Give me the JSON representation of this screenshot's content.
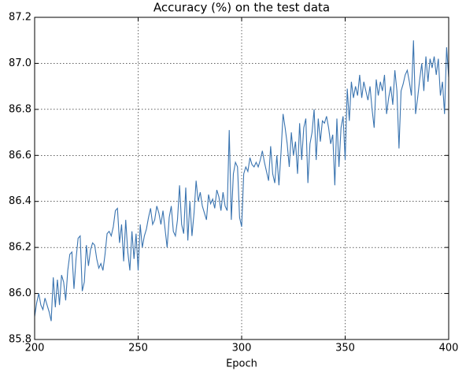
{
  "chart_data": {
    "type": "line",
    "title": "Accuracy (%) on the test data",
    "xlabel": "Epoch",
    "x": [
      200,
      201,
      202,
      203,
      204,
      205,
      206,
      207,
      208,
      209,
      210,
      211,
      212,
      213,
      214,
      215,
      216,
      217,
      218,
      219,
      220,
      221,
      222,
      223,
      224,
      225,
      226,
      227,
      228,
      229,
      230,
      231,
      232,
      233,
      234,
      235,
      236,
      237,
      238,
      239,
      240,
      241,
      242,
      243,
      244,
      245,
      246,
      247,
      248,
      249,
      250,
      251,
      252,
      253,
      254,
      255,
      256,
      257,
      258,
      259,
      260,
      261,
      262,
      263,
      264,
      265,
      266,
      267,
      268,
      269,
      270,
      271,
      272,
      273,
      274,
      275,
      276,
      277,
      278,
      279,
      280,
      281,
      282,
      283,
      284,
      285,
      286,
      287,
      288,
      289,
      290,
      291,
      292,
      293,
      294,
      295,
      296,
      297,
      298,
      299,
      300,
      301,
      302,
      303,
      304,
      305,
      306,
      307,
      308,
      309,
      310,
      311,
      312,
      313,
      314,
      315,
      316,
      317,
      318,
      319,
      320,
      321,
      322,
      323,
      324,
      325,
      326,
      327,
      328,
      329,
      330,
      331,
      332,
      333,
      334,
      335,
      336,
      337,
      338,
      339,
      340,
      341,
      342,
      343,
      344,
      345,
      346,
      347,
      348,
      349,
      350,
      351,
      352,
      353,
      354,
      355,
      356,
      357,
      358,
      359,
      360,
      361,
      362,
      363,
      364,
      365,
      366,
      367,
      368,
      369,
      370,
      371,
      372,
      373,
      374,
      375,
      376,
      377,
      378,
      379,
      380,
      381,
      382,
      383,
      384,
      385,
      386,
      387,
      388,
      389,
      390,
      391,
      392,
      393,
      394,
      395,
      396,
      397,
      398,
      399,
      400
    ],
    "series": [
      {
        "name": "accuracy",
        "color": "#3a74b0",
        "values": [
          85.9,
          85.96,
          86.0,
          85.95,
          85.93,
          85.98,
          85.95,
          85.92,
          85.88,
          86.07,
          85.94,
          86.06,
          85.95,
          86.08,
          86.05,
          85.97,
          86.1,
          86.17,
          86.18,
          86.02,
          86.15,
          86.24,
          86.25,
          86.01,
          86.05,
          86.21,
          86.12,
          86.19,
          86.22,
          86.21,
          86.15,
          86.11,
          86.13,
          86.1,
          86.17,
          86.26,
          86.27,
          86.25,
          86.29,
          86.36,
          86.37,
          86.22,
          86.3,
          86.14,
          86.32,
          86.18,
          86.1,
          86.27,
          86.15,
          86.26,
          86.1,
          86.3,
          86.2,
          86.25,
          86.28,
          86.33,
          86.37,
          86.3,
          86.32,
          86.38,
          86.35,
          86.3,
          86.36,
          86.28,
          86.2,
          86.33,
          86.38,
          86.27,
          86.25,
          86.32,
          86.47,
          86.3,
          86.26,
          86.46,
          86.23,
          86.4,
          86.25,
          86.35,
          86.49,
          86.4,
          86.44,
          86.38,
          86.35,
          86.32,
          86.43,
          86.39,
          86.41,
          86.37,
          86.45,
          86.42,
          86.36,
          86.44,
          86.38,
          86.36,
          86.71,
          86.32,
          86.52,
          86.57,
          86.55,
          86.33,
          86.29,
          86.52,
          86.55,
          86.53,
          86.59,
          86.56,
          86.55,
          86.57,
          86.55,
          86.58,
          86.62,
          86.57,
          86.53,
          86.49,
          86.64,
          86.52,
          86.48,
          86.6,
          86.47,
          86.61,
          86.78,
          86.72,
          86.65,
          86.55,
          86.7,
          86.6,
          86.66,
          86.52,
          86.74,
          86.58,
          86.72,
          86.76,
          86.48,
          86.65,
          86.7,
          86.8,
          86.58,
          86.76,
          86.66,
          86.75,
          86.74,
          86.77,
          86.72,
          86.65,
          86.69,
          86.47,
          86.76,
          86.55,
          86.72,
          86.77,
          86.58,
          86.89,
          86.75,
          86.92,
          86.85,
          86.9,
          86.86,
          86.95,
          86.85,
          86.92,
          86.88,
          86.84,
          86.9,
          86.8,
          86.72,
          86.93,
          86.86,
          86.92,
          86.88,
          86.95,
          86.78,
          86.85,
          86.9,
          86.82,
          86.97,
          86.88,
          86.63,
          86.88,
          86.91,
          86.95,
          86.97,
          86.92,
          86.86,
          87.1,
          86.78,
          86.85,
          86.93,
          87.0,
          86.88,
          87.03,
          86.92,
          87.02,
          86.98,
          87.03,
          86.95,
          87.02,
          86.86,
          86.92,
          86.78,
          87.07,
          86.94
        ]
      }
    ],
    "xlim": [
      200,
      400
    ],
    "xticks": [
      200,
      250,
      300,
      350,
      400
    ],
    "ylim": [
      85.8,
      87.2
    ],
    "yticks": [
      85.8,
      {
        "value": 86,
        "label": "86.0"
      },
      86.2,
      86.4,
      86.6,
      86.8,
      {
        "value": 87,
        "label": "87.0"
      },
      87.2
    ],
    "grid": true
  }
}
